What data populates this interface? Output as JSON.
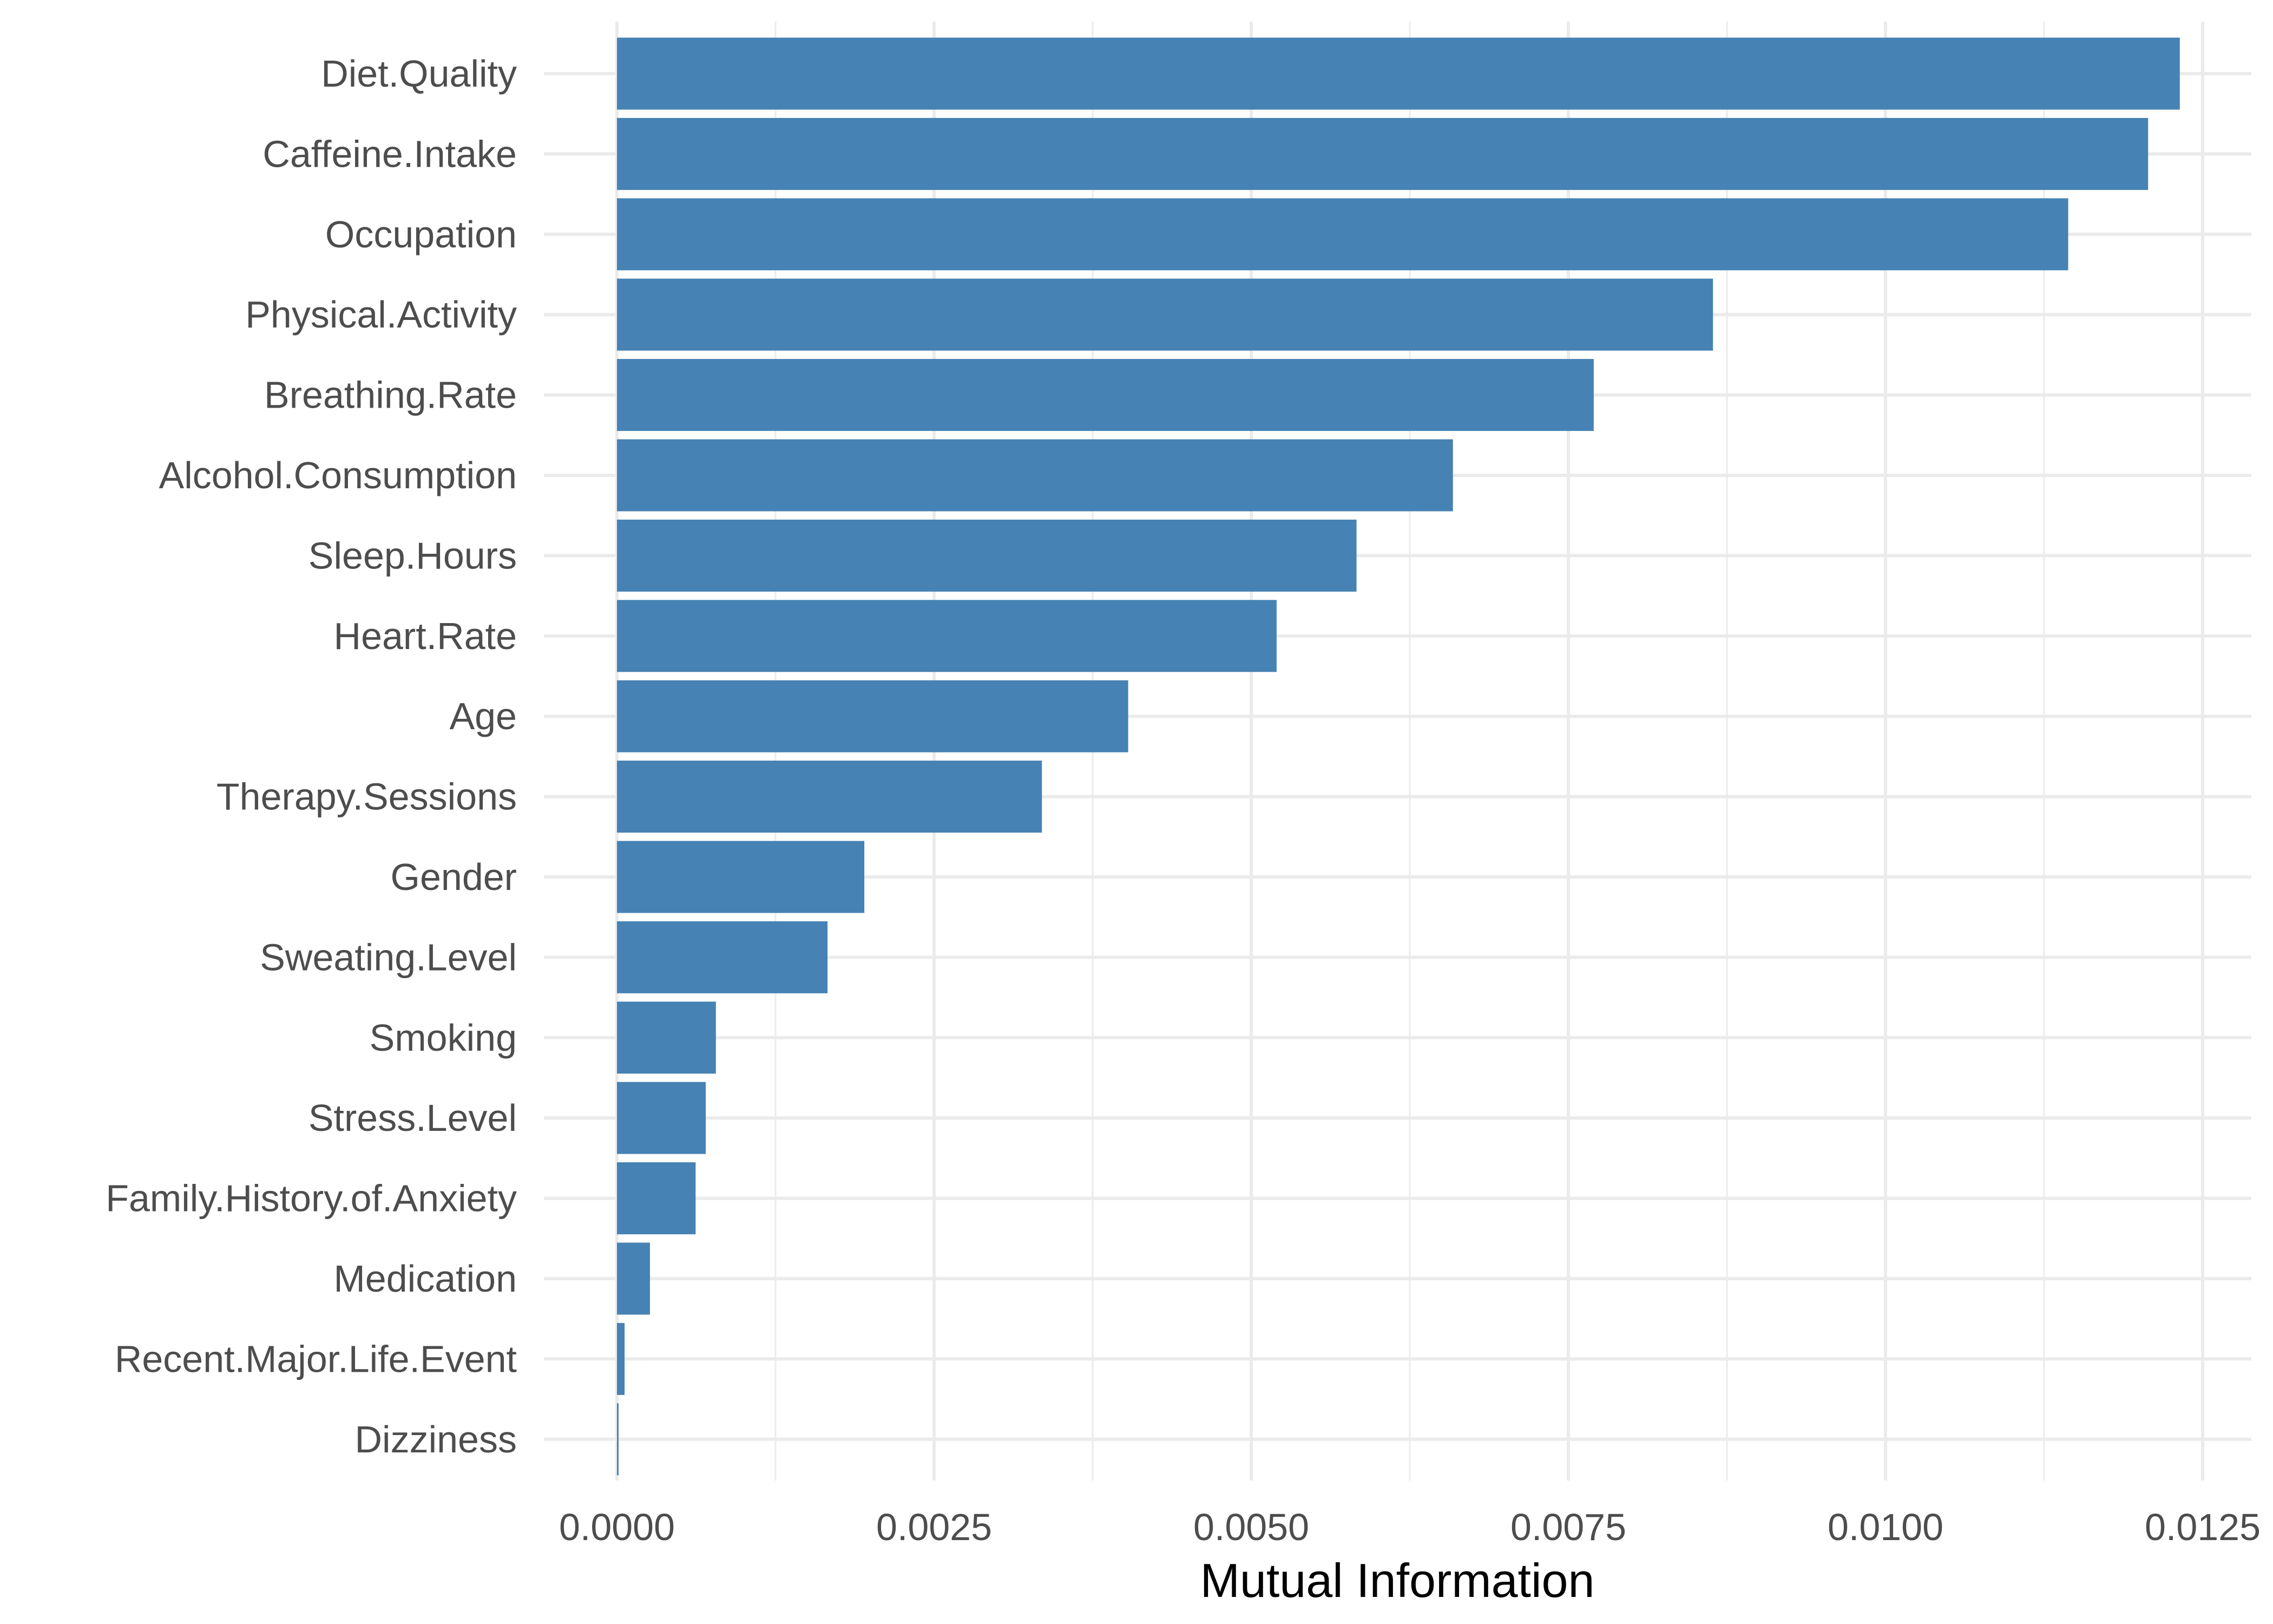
{
  "chart_data": {
    "type": "bar",
    "orientation": "horizontal",
    "title": "",
    "xlabel": "Mutual Information",
    "ylabel": "",
    "xlim": [
      -0.0002,
      0.01275
    ],
    "xticks": [
      0.0,
      0.0025,
      0.005,
      0.0075,
      0.01,
      0.0125
    ],
    "xtick_labels": [
      "0.0000",
      "0.0025",
      "0.0050",
      "0.0075",
      "0.0100",
      "0.0125"
    ],
    "grid": true,
    "legend": "none",
    "bar_color": "#4682B4",
    "categories": [
      "Diet.Quality",
      "Caffeine.Intake",
      "Occupation",
      "Physical.Activity",
      "Breathing.Rate",
      "Alcohol.Consumption",
      "Sleep.Hours",
      "Heart.Rate",
      "Age",
      "Therapy.Sessions",
      "Gender",
      "Sweating.Level",
      "Smoking",
      "Stress.Level",
      "Family.History.of.Anxiety",
      "Medication",
      "Recent.Major.Life.Event",
      "Dizziness"
    ],
    "values": [
      0.01232,
      0.01207,
      0.01144,
      0.00864,
      0.0077,
      0.00659,
      0.00583,
      0.0052,
      0.00403,
      0.00335,
      0.00195,
      0.00166,
      0.00078,
      0.0007,
      0.00062,
      0.00026,
      6e-05,
      1e-05
    ]
  }
}
